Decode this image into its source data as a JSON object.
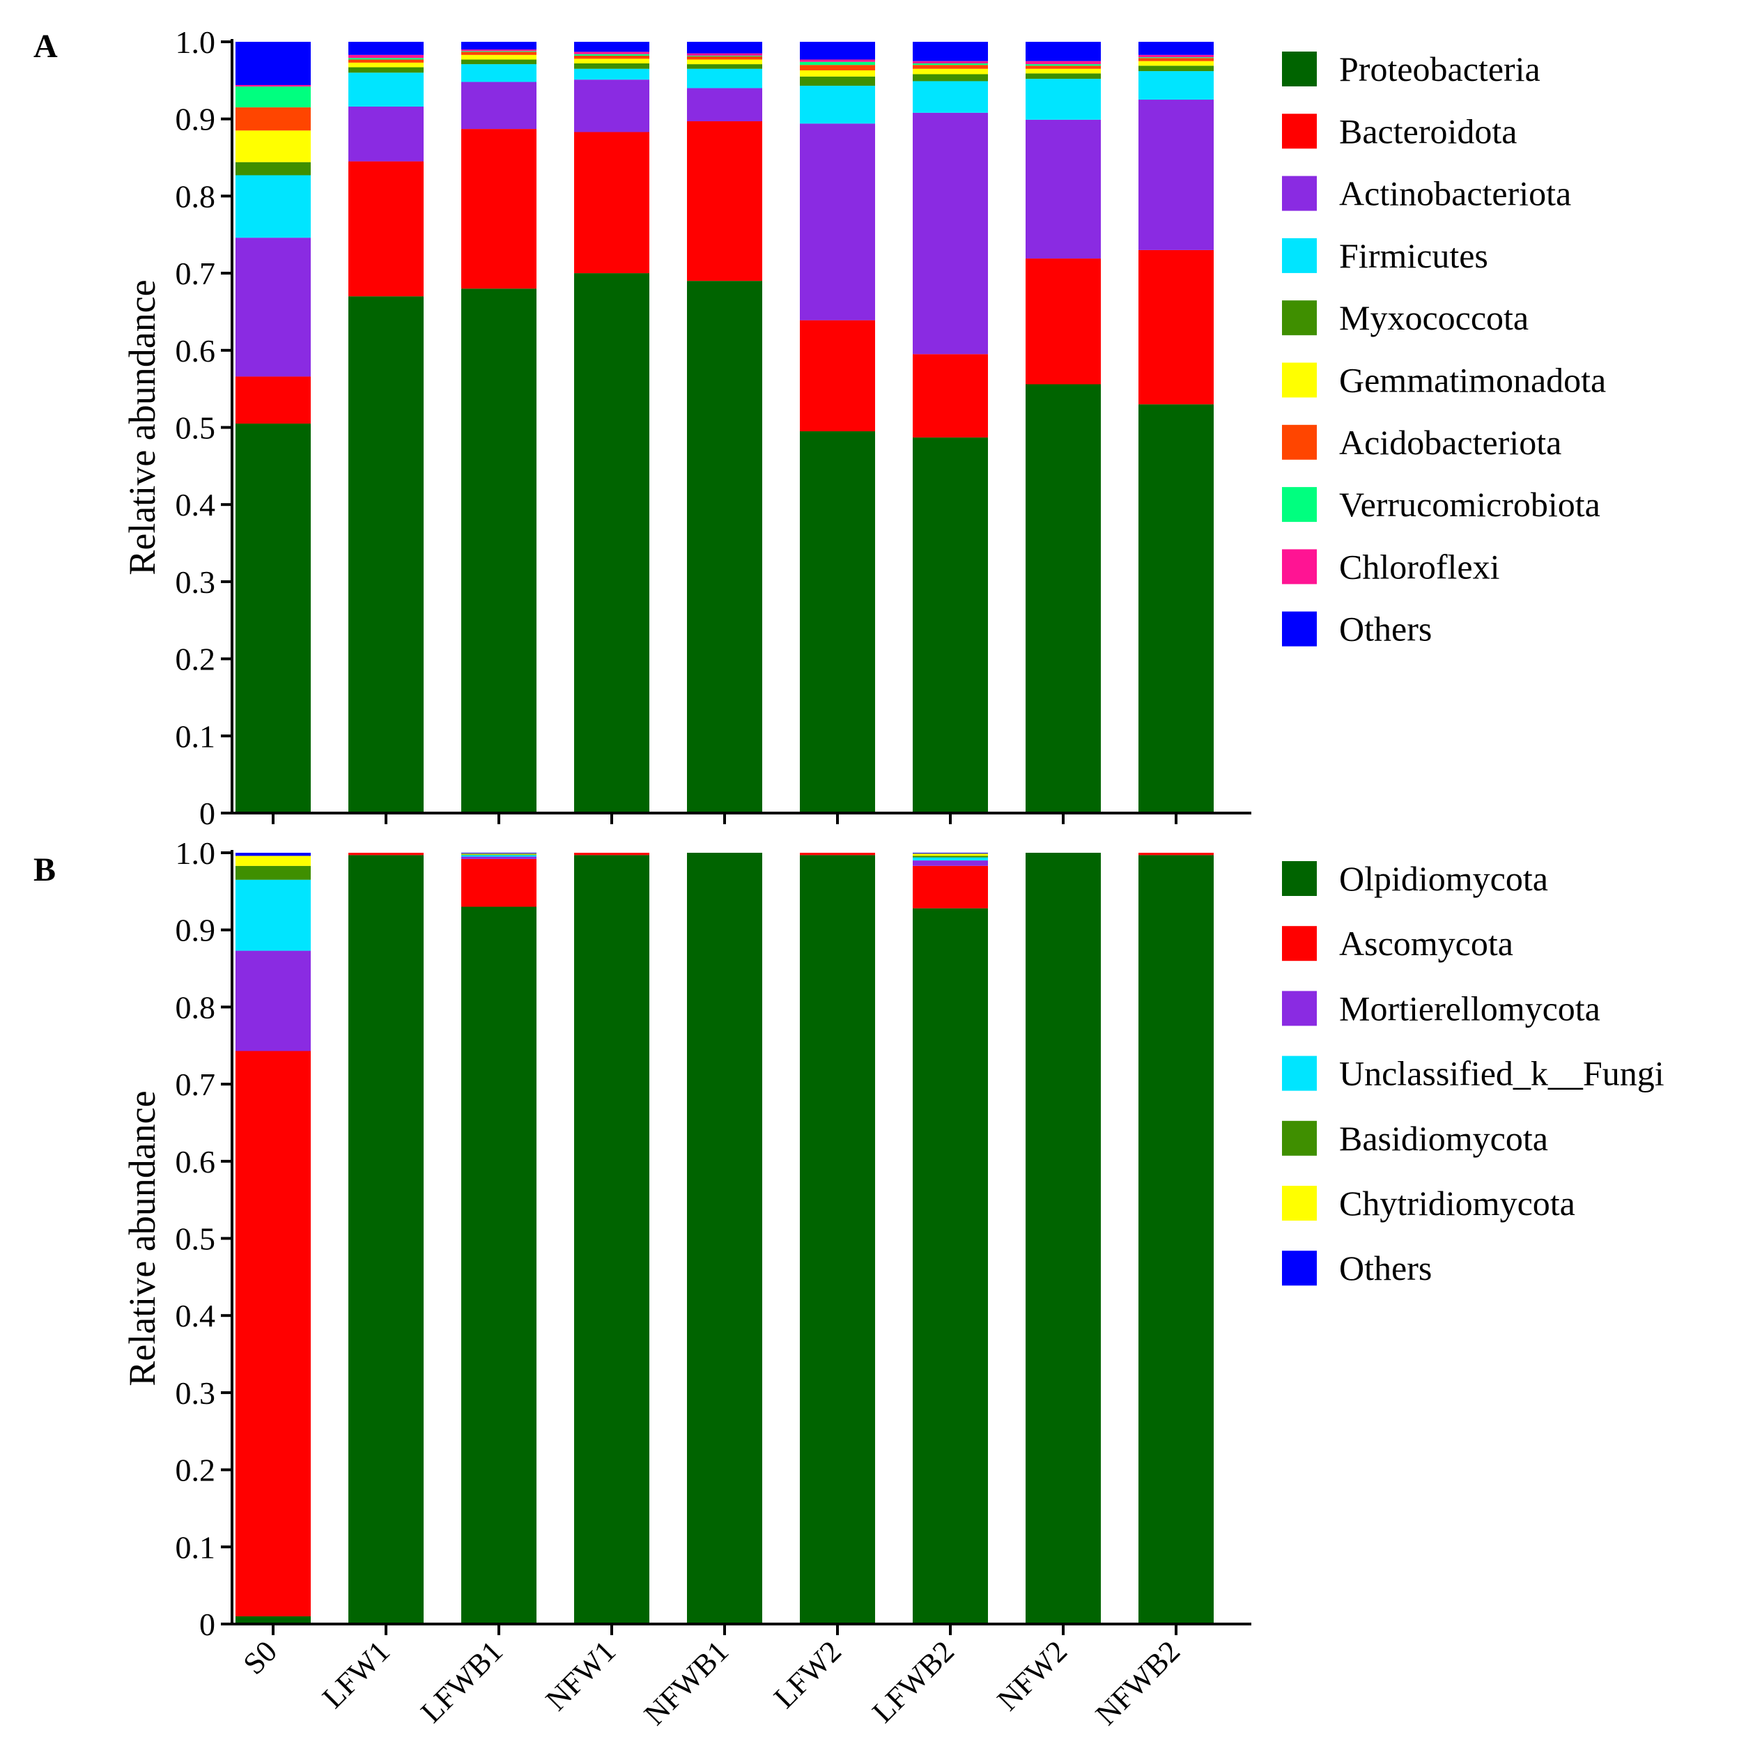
{
  "colors": {
    "dark_green": "#006400",
    "red": "#ff0000",
    "purple": "#8a2be2",
    "cyan": "#00e5ff",
    "olive_green": "#3f8f00",
    "yellow": "#ffff00",
    "orange_red": "#ff4500",
    "spring_green": "#00ff7f",
    "pink": "#ff1493",
    "blue": "#0000ff"
  },
  "chart_data": [
    {
      "type": "bar",
      "stacked": true,
      "panel_label": "A",
      "ylabel": "Relative abundance",
      "xlabel": "",
      "ylim": [
        0,
        1.0
      ],
      "yticks": [
        "0",
        "0.1",
        "0.2",
        "0.3",
        "0.4",
        "0.5",
        "0.6",
        "0.7",
        "0.8",
        "0.9",
        "1.0"
      ],
      "categories": [
        "S0",
        "LFW1",
        "LFWB1",
        "NFW1",
        "NFWB1",
        "LFW2",
        "LFWB2",
        "NFW2",
        "NFWB2"
      ],
      "legend_position": "right",
      "series": [
        {
          "name": "Proteobacteria",
          "color": "dark_green",
          "values": [
            0.505,
            0.67,
            0.68,
            0.7,
            0.69,
            0.495,
            0.487,
            0.556,
            0.53
          ]
        },
        {
          "name": "Bacteroidota",
          "color": "red",
          "values": [
            0.061,
            0.175,
            0.207,
            0.183,
            0.207,
            0.144,
            0.108,
            0.163,
            0.2
          ]
        },
        {
          "name": "Actinobacteriota",
          "color": "purple",
          "values": [
            0.18,
            0.071,
            0.061,
            0.068,
            0.043,
            0.255,
            0.313,
            0.18,
            0.195
          ]
        },
        {
          "name": "Firmicutes",
          "color": "cyan",
          "values": [
            0.081,
            0.044,
            0.023,
            0.014,
            0.025,
            0.049,
            0.041,
            0.053,
            0.037
          ]
        },
        {
          "name": "Myxococcota",
          "color": "olive_green",
          "values": [
            0.017,
            0.007,
            0.006,
            0.007,
            0.006,
            0.012,
            0.009,
            0.007,
            0.007
          ]
        },
        {
          "name": "Gemmatimonadota",
          "color": "yellow",
          "values": [
            0.041,
            0.006,
            0.006,
            0.006,
            0.006,
            0.008,
            0.007,
            0.006,
            0.006
          ]
        },
        {
          "name": "Acidobacteriota",
          "color": "orange_red",
          "values": [
            0.03,
            0.004,
            0.004,
            0.004,
            0.004,
            0.007,
            0.005,
            0.004,
            0.004
          ]
        },
        {
          "name": "Verrucomicrobiota",
          "color": "spring_green",
          "values": [
            0.027,
            0.002,
            0.001,
            0.002,
            0.001,
            0.004,
            0.002,
            0.002,
            0.001
          ]
        },
        {
          "name": "Chloroflexi",
          "color": "pink",
          "values": [
            0.002,
            0.004,
            0.002,
            0.003,
            0.003,
            0.003,
            0.003,
            0.004,
            0.003
          ]
        },
        {
          "name": "Others",
          "color": "blue",
          "values": [
            0.056,
            0.017,
            0.01,
            0.013,
            0.015,
            0.023,
            0.025,
            0.025,
            0.017
          ]
        }
      ]
    },
    {
      "type": "bar",
      "stacked": true,
      "panel_label": "B",
      "ylabel": "Relative abundance",
      "xlabel": "",
      "ylim": [
        0,
        1.0
      ],
      "yticks": [
        "0",
        "0.1",
        "0.2",
        "0.3",
        "0.4",
        "0.5",
        "0.6",
        "0.7",
        "0.8",
        "0.9",
        "1.0"
      ],
      "categories": [
        "S0",
        "LFW1",
        "LFWB1",
        "NFW1",
        "NFWB1",
        "LFW2",
        "LFWB2",
        "NFW2",
        "NFWB2"
      ],
      "legend_position": "right",
      "series": [
        {
          "name": "Olpidiomycota",
          "color": "dark_green",
          "values": [
            0.01,
            0.997,
            0.93,
            0.997,
            1.0,
            0.997,
            0.928,
            1.0,
            0.997
          ]
        },
        {
          "name": "Ascomycota",
          "color": "red",
          "values": [
            0.733,
            0.003,
            0.062,
            0.003,
            0.0,
            0.003,
            0.055,
            0.0,
            0.003
          ]
        },
        {
          "name": "Mortierellomycota",
          "color": "purple",
          "values": [
            0.13,
            0.0,
            0.003,
            0.0,
            0.0,
            0.0,
            0.007,
            0.0,
            0.0
          ]
        },
        {
          "name": "Unclassified_k__Fungi",
          "color": "cyan",
          "values": [
            0.092,
            0.0,
            0.002,
            0.0,
            0.0,
            0.0,
            0.004,
            0.0,
            0.0
          ]
        },
        {
          "name": "Basidiomycota",
          "color": "olive_green",
          "values": [
            0.018,
            0.0,
            0.001,
            0.0,
            0.0,
            0.0,
            0.002,
            0.0,
            0.0
          ]
        },
        {
          "name": "Chytridiomycota",
          "color": "yellow",
          "values": [
            0.013,
            0.0,
            0.001,
            0.0,
            0.0,
            0.0,
            0.003,
            0.0,
            0.0
          ]
        },
        {
          "name": "Others",
          "color": "blue",
          "values": [
            0.004,
            0.0,
            0.001,
            0.0,
            0.0,
            0.0,
            0.001,
            0.0,
            0.0
          ]
        }
      ]
    }
  ]
}
